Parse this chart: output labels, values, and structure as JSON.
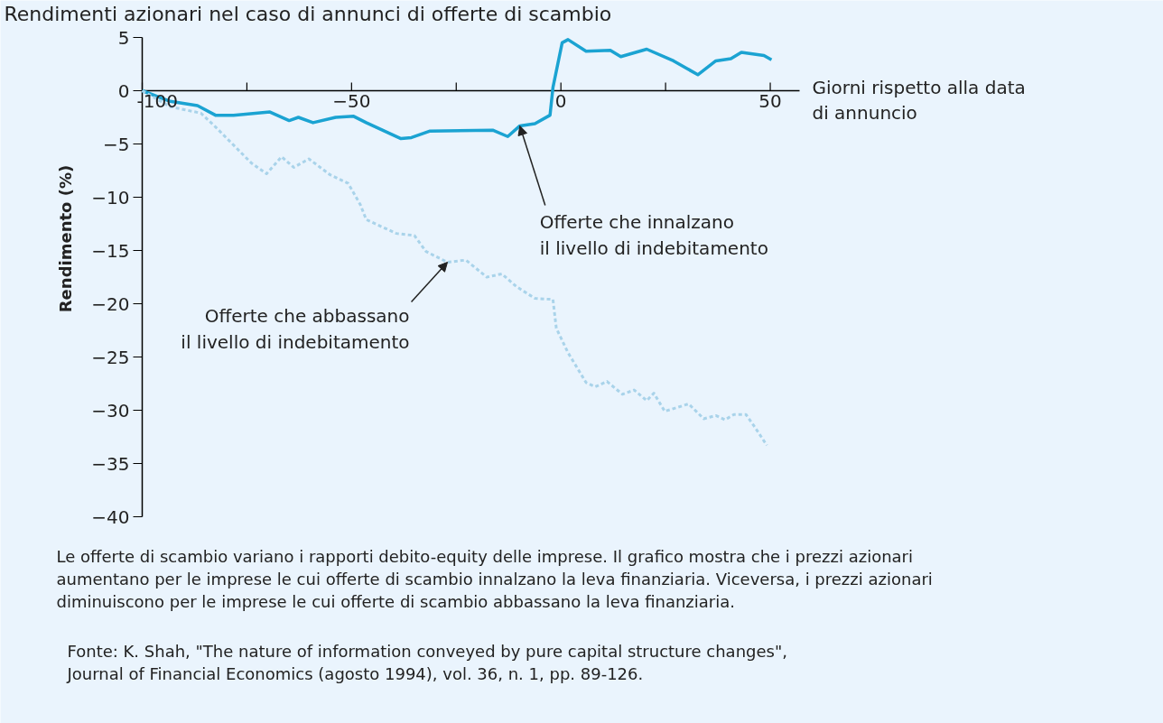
{
  "chart_data": {
    "type": "line",
    "title": "Rendimenti azionari nel caso di annunci di offerte di scambio",
    "xlabel": "Giorni rispetto alla data\ndi annuncio",
    "ylabel": "Rendimento (%)",
    "xlim": [
      -100,
      57
    ],
    "ylim": [
      -40,
      5
    ],
    "xticks": [
      -100,
      {
        "value": -75,
        "label": null
      },
      {
        "value": -50,
        "label": "−50"
      },
      {
        "value": -25,
        "label": null
      },
      0,
      {
        "value": 25,
        "label": null
      },
      50
    ],
    "yticks": [
      5,
      0,
      {
        "value": -5,
        "label": "−5"
      },
      {
        "value": -10,
        "label": "−10"
      },
      {
        "value": -15,
        "label": "−15"
      },
      {
        "value": -20,
        "label": "−20"
      },
      {
        "value": -25,
        "label": "−25"
      },
      {
        "value": -30,
        "label": "−30"
      },
      {
        "value": -35,
        "label": "−35"
      },
      {
        "value": -40,
        "label": "−40"
      }
    ],
    "grid": false,
    "series": [
      {
        "color": "#1ba3d2",
        "line_style": "solid",
        "x": [
          -100,
          -93.3,
          -86.8,
          -82.5,
          -78.2,
          -69.5,
          -64.9,
          -62.7,
          -59.2,
          -53.8,
          -49.5,
          -46.5,
          -38.2,
          -35.7,
          -31.4,
          -16.3,
          -12.7,
          -9.8,
          -6.2,
          -2.6,
          -1.9,
          0.3,
          1.7,
          6.0,
          11.8,
          14.3,
          20.5,
          26.9,
          32.7,
          37.0,
          40.6,
          43.1,
          48.5,
          50.3
        ],
        "values": [
          0,
          -1.0,
          -1.4,
          -2.3,
          -2.3,
          -2.0,
          -2.8,
          -2.5,
          -3.0,
          -2.5,
          -2.4,
          -3.0,
          -4.5,
          -4.4,
          -3.8,
          -3.7,
          -4.3,
          -3.3,
          -3.1,
          -2.3,
          0.3,
          4.5,
          4.8,
          3.7,
          3.8,
          3.2,
          3.9,
          2.8,
          1.5,
          2.8,
          3.0,
          3.6,
          3.3,
          2.9
        ]
      },
      {
        "color": "#a9d3ea",
        "line_style": "dashed",
        "x": [
          -100,
          -93.3,
          -86.0,
          -82.5,
          -73.9,
          -70.3,
          -66.7,
          -63.8,
          -60.2,
          -55.1,
          -50.8,
          -47.9,
          -46.5,
          -39.3,
          -35.0,
          -32.2,
          -27.1,
          -22.7,
          -17.7,
          -14.1,
          -10.6,
          -6.2,
          -1.9,
          -1.1,
          1.7,
          6.0,
          8.2,
          11.0,
          14.7,
          17.5,
          20.5,
          22.2,
          24.8,
          27.3,
          30.5,
          34.1,
          37.0,
          39.2,
          41.3,
          44.2,
          46.0,
          49.2
        ],
        "values": [
          0,
          -1.5,
          -2.1,
          -3.4,
          -6.8,
          -7.8,
          -6.2,
          -7.2,
          -6.4,
          -7.9,
          -8.7,
          -10.7,
          -12.1,
          -13.4,
          -13.6,
          -15.1,
          -16.1,
          -15.9,
          -17.5,
          -17.2,
          -18.4,
          -19.5,
          -19.6,
          -22.3,
          -24.6,
          -27.4,
          -27.8,
          -27.3,
          -28.5,
          -28.1,
          -29.1,
          -28.4,
          -30.1,
          -29.8,
          -29.4,
          -30.8,
          -30.5,
          -30.9,
          -30.4,
          -30.4,
          -31.4,
          -33.3
        ]
      }
    ],
    "annotations": [
      {
        "text": "Offerte che innalzano\nil livello di indebitamento",
        "x": -9.8,
        "y": -3.3
      },
      {
        "text": "Offerte che abbassano\nil livello di indebitamento",
        "x": -27.1,
        "y": -16.1
      },
      "Le offerte di scambio variano i rapporti debito-equity delle imprese. Il grafico mostra che i prezzi azionari\naumentano per le imprese le cui offerte di scambio innalzano la leva finanziaria. Viceversa, i prezzi azionari\ndiminuiscono per le imprese le cui offerte di scambio abbassano la leva finanziaria.",
      "Fonte: K. Shah, \"The nature of information conveyed by pure capital structure changes\",\nJournal of Financial Economics (agosto 1994), vol. 36, n. 1, pp. 89-126."
    ]
  }
}
